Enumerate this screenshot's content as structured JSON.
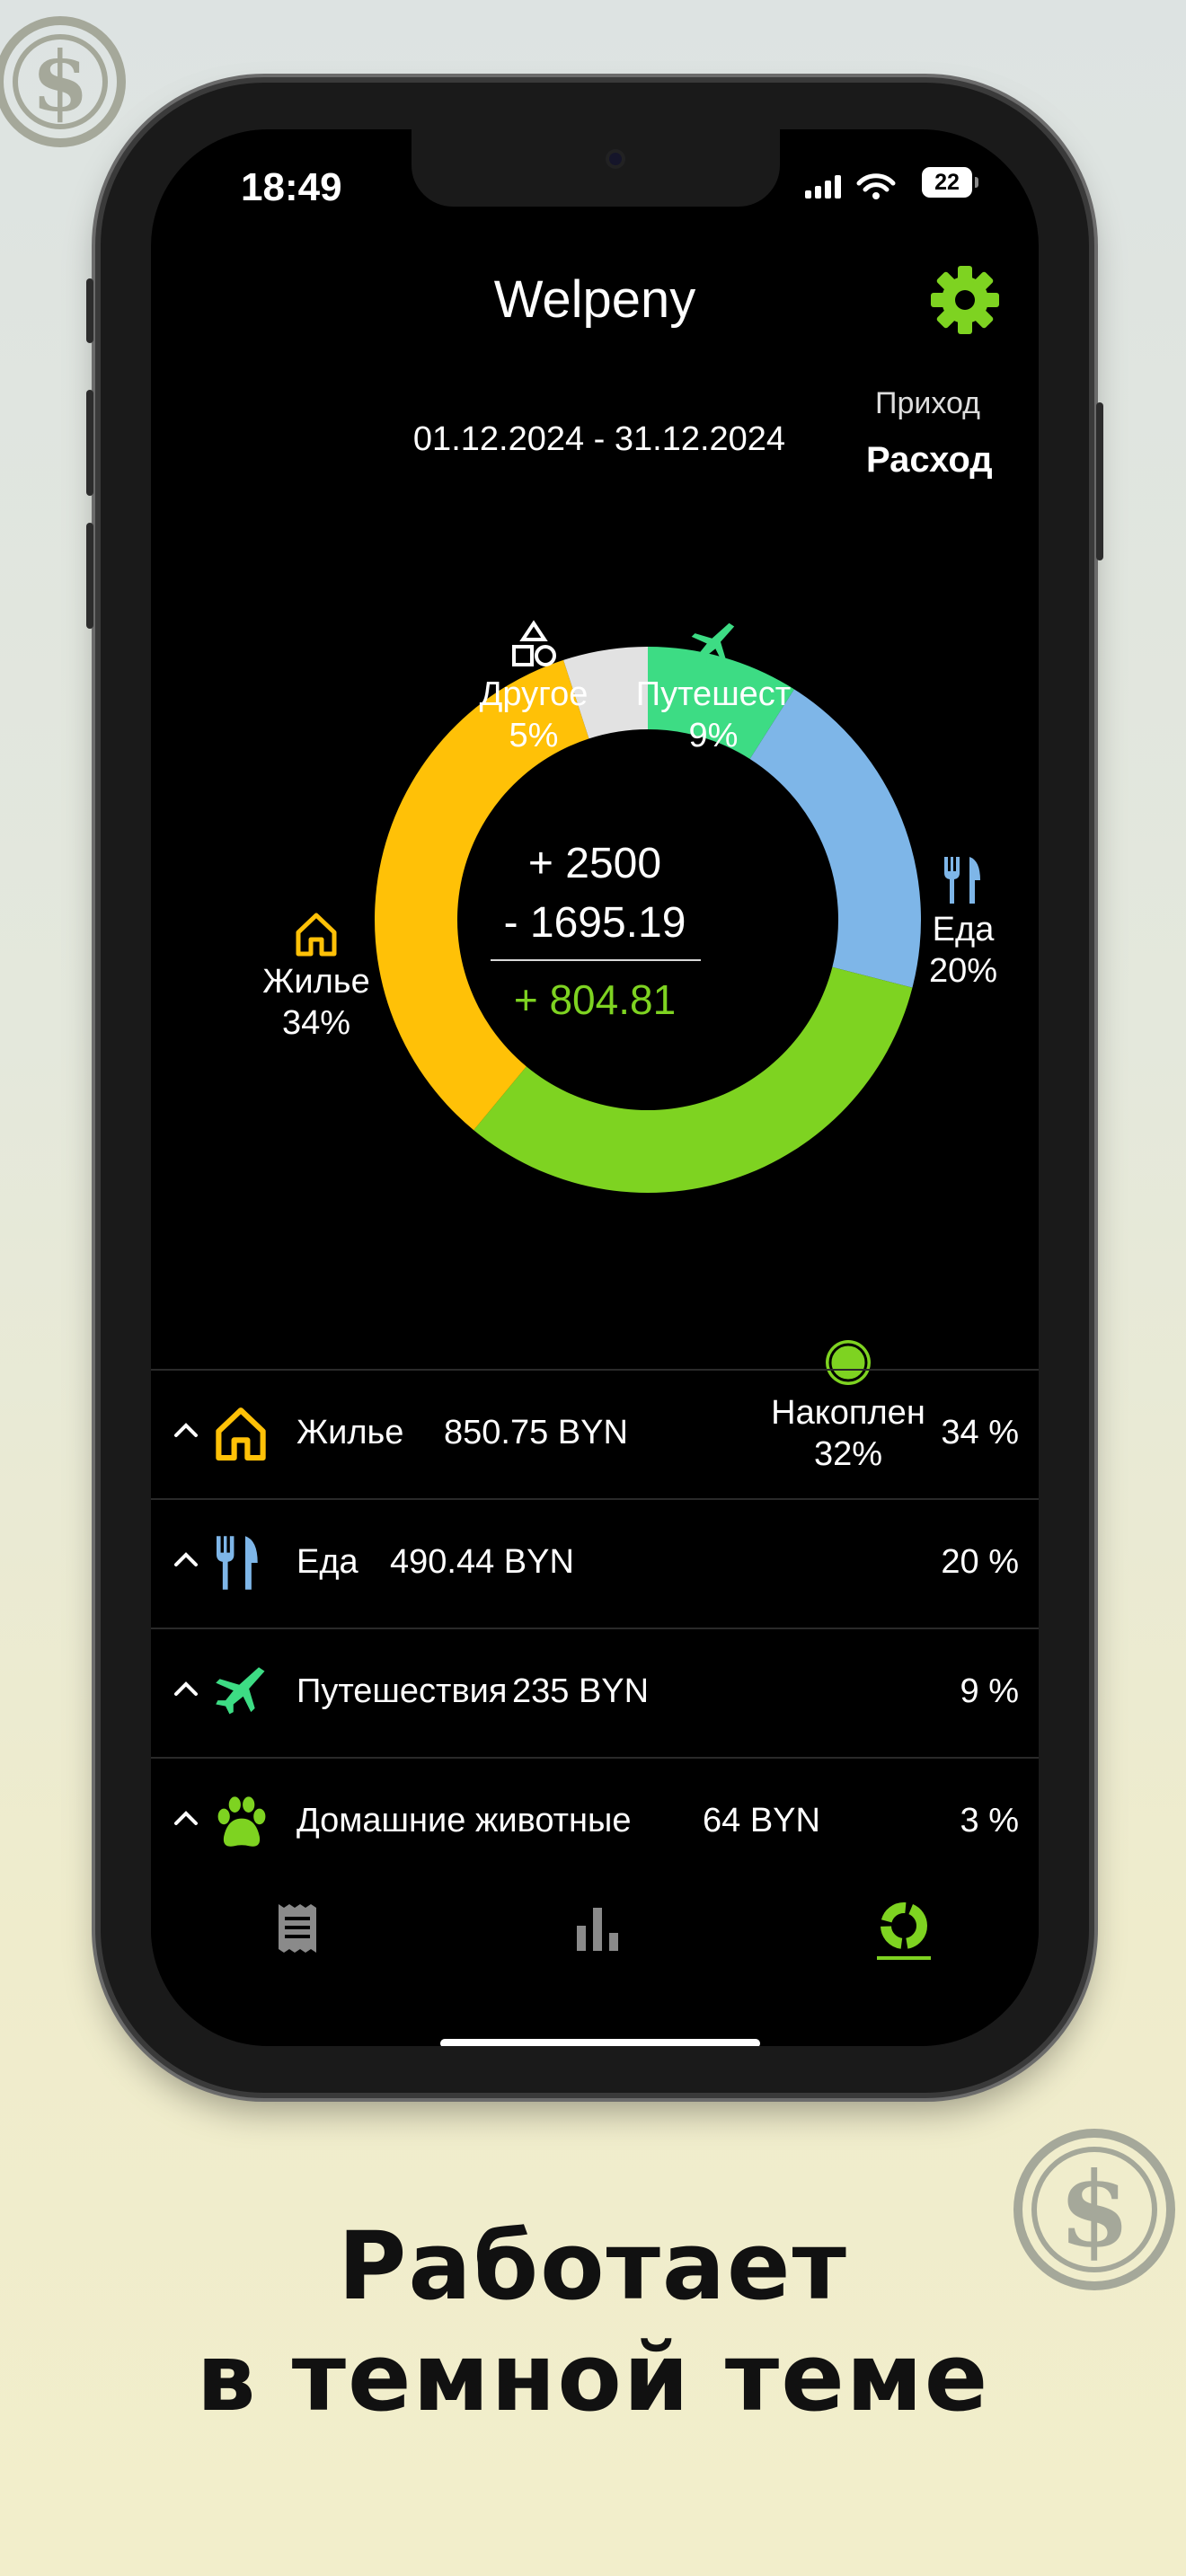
{
  "status_bar": {
    "time": "18:49",
    "battery": "22"
  },
  "header": {
    "title": "Welpeny",
    "settings_icon": "gear-icon"
  },
  "toggle": {
    "income_label": "Приход",
    "expense_label": "Расход"
  },
  "period": {
    "range": "01.12.2024 - 31.12.2024"
  },
  "colors": {
    "housing": "#FFC107",
    "food": "#7EB6E8",
    "travel": "#3DDC84",
    "savings": "#7ED321",
    "other": "#E2E2E2",
    "accent": "#7ED321"
  },
  "chart_data": {
    "type": "pie",
    "categories": [
      "Жилье",
      "Еда",
      "Путешест",
      "Другое",
      "Накоплен"
    ],
    "values": [
      34,
      20,
      9,
      5,
      32
    ],
    "unit": "%",
    "donut_labels": [
      {
        "name": "Жилье",
        "percent": "34%"
      },
      {
        "name": "Еда",
        "percent": "20%"
      },
      {
        "name": "Путешест",
        "percent": "9%"
      },
      {
        "name": "Другое",
        "percent": "5%"
      },
      {
        "name": "Накоплен",
        "percent": "32%"
      }
    ]
  },
  "summary": {
    "income": "+ 2500",
    "expense": "- 1695.19",
    "net": "+ 804.81"
  },
  "list": [
    {
      "name": "Жилье",
      "amount": "850.75 BYN",
      "percent": "34 %",
      "icon": "house-icon"
    },
    {
      "name": "Еда",
      "amount": "490.44 BYN",
      "percent": "20 %",
      "icon": "fork-knife-icon"
    },
    {
      "name": "Путешествия",
      "amount": "235 BYN",
      "percent": "9 %",
      "icon": "airplane-icon"
    },
    {
      "name": "Домашние животные",
      "amount": "64 BYN",
      "percent": "3 %",
      "icon": "paw-icon"
    }
  ],
  "tabs": [
    {
      "name": "receipt-tab",
      "icon": "receipt-icon"
    },
    {
      "name": "bars-tab",
      "icon": "bar-chart-icon"
    },
    {
      "name": "donut-tab",
      "icon": "donut-chart-icon",
      "active": true
    }
  ],
  "caption": {
    "line1": "Работает",
    "line2": "в темной теме"
  }
}
